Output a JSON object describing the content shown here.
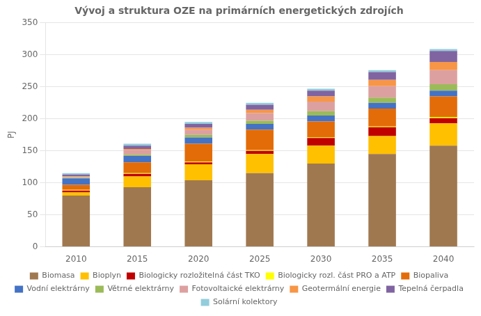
{
  "chart_data": {
    "type": "bar",
    "title": "Vývoj a struktura OZE na primárních energetických zdrojích",
    "ylabel": "PJ",
    "categories": [
      2010,
      2015,
      2020,
      2025,
      2030,
      2035,
      2040
    ],
    "stacked": true,
    "grid": true,
    "legend": "bottom",
    "ylim": [
      0,
      350
    ],
    "yticks": [
      0,
      50,
      100,
      150,
      200,
      250,
      300,
      350
    ],
    "series": [
      {
        "name": "Biomasa",
        "color": "#A07850",
        "values": [
          80,
          93,
          104,
          115,
          130,
          145,
          158
        ]
      },
      {
        "name": "Bioplyn",
        "color": "#FFC000",
        "values": [
          5,
          17,
          25,
          30,
          28,
          28,
          35
        ]
      },
      {
        "name": "Biologicky rozložitelná část TKO",
        "color": "#C00000",
        "values": [
          3,
          4,
          3,
          5,
          12,
          14,
          8
        ]
      },
      {
        "name": "Biologicky rozl. část PRO a ATP",
        "color": "#FFFF00",
        "values": [
          1,
          1,
          1,
          1,
          1,
          1,
          2
        ]
      },
      {
        "name": "Biopaliva",
        "color": "#E36C09",
        "values": [
          8,
          17,
          28,
          32,
          25,
          28,
          32
        ]
      },
      {
        "name": "Vodní elektrárny",
        "color": "#4472C4",
        "values": [
          10,
          10,
          10,
          9,
          9,
          9,
          9
        ]
      },
      {
        "name": "Větrné elektrárny",
        "color": "#9BBB59",
        "values": [
          1,
          2,
          4,
          5,
          7,
          8,
          10
        ]
      },
      {
        "name": "Fotovoltaické elektrárny",
        "color": "#DDA0A0",
        "values": [
          1,
          7,
          8,
          12,
          15,
          18,
          22
        ]
      },
      {
        "name": "Geotermální energie",
        "color": "#F79646",
        "values": [
          1,
          2,
          3,
          5,
          8,
          10,
          13
        ]
      },
      {
        "name": "Tepelná čerpadla",
        "color": "#8064A2",
        "values": [
          3,
          5,
          6,
          8,
          9,
          12,
          17
        ]
      },
      {
        "name": "Solární kolektory",
        "color": "#92CDDC",
        "values": [
          2,
          3,
          3,
          3,
          3,
          3,
          3
        ]
      }
    ]
  }
}
